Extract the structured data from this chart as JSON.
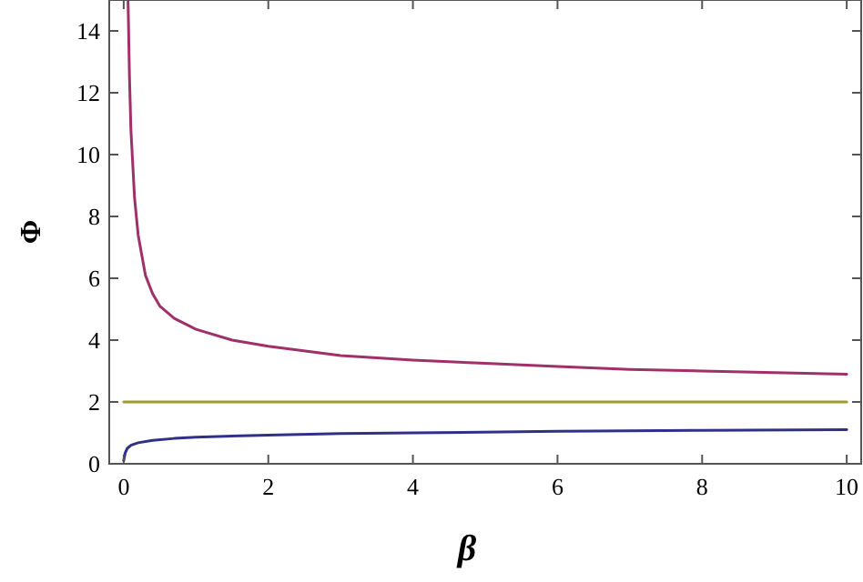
{
  "chart_data": {
    "type": "line",
    "xlabel": "β",
    "ylabel": "Φ",
    "xlim": [
      -0.2,
      10.2
    ],
    "ylim": [
      0,
      15
    ],
    "xticks": [
      0,
      2,
      4,
      6,
      8,
      10
    ],
    "yticks": [
      0,
      2,
      4,
      6,
      8,
      10,
      12,
      14
    ],
    "line_style": "solid",
    "series": [
      {
        "color": "#a0306a",
        "x": [
          0.06,
          0.08,
          0.1,
          0.15,
          0.2,
          0.3,
          0.4,
          0.5,
          0.7,
          1,
          1.5,
          2,
          3,
          4,
          5,
          6,
          7,
          8,
          9,
          10
        ],
        "values": [
          15,
          12.5,
          10.8,
          8.6,
          7.4,
          6.1,
          5.5,
          5.1,
          4.7,
          4.35,
          4.0,
          3.8,
          3.5,
          3.35,
          3.25,
          3.15,
          3.05,
          3.0,
          2.95,
          2.9
        ]
      },
      {
        "color": "#a09a30",
        "x": [
          0,
          10
        ],
        "values": [
          2,
          2
        ]
      },
      {
        "color": "#30308a",
        "x": [
          0,
          0.02,
          0.05,
          0.1,
          0.2,
          0.4,
          0.7,
          1,
          2,
          3,
          4,
          6,
          8,
          10
        ],
        "values": [
          0.1,
          0.35,
          0.5,
          0.6,
          0.68,
          0.76,
          0.82,
          0.86,
          0.93,
          0.98,
          1.0,
          1.05,
          1.08,
          1.1
        ]
      }
    ]
  }
}
